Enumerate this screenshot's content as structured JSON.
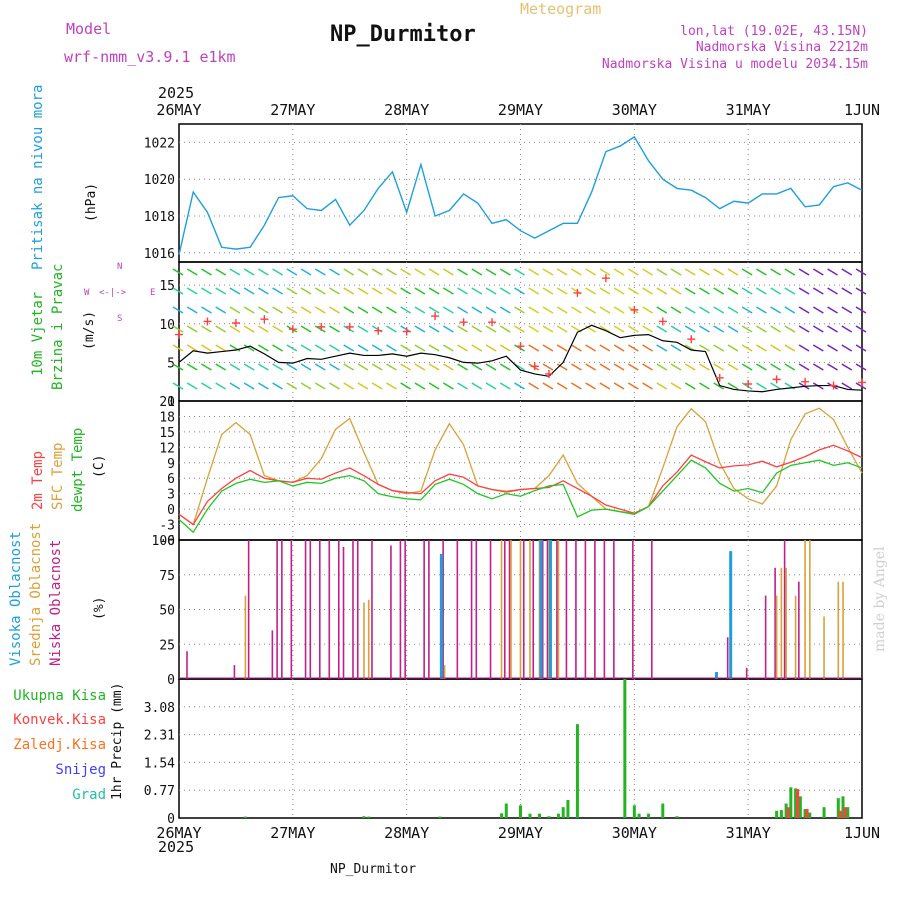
{
  "header": {
    "model_label": "Model",
    "model_name": "wrf-nmm_v3.9.1 e1km",
    "title": "NP_Durmitor",
    "subtitle": "Meteogram",
    "coords": "lon,lat (19.02E, 43.15N)",
    "elevation": "Nadmorska Visina 2212m",
    "elevation_model": "Nadmorska Visina u modelu 2034.15m",
    "year_top": "2025",
    "year_bottom": "2025",
    "footer": "NP_Durmitor",
    "credit": "made by Angel"
  },
  "colors": {
    "pressure": "#1e9fdc",
    "wind_label": "#22b522",
    "wind_speed": "#000000",
    "gust": "#ff4040",
    "temp2m": "#ff4040",
    "sfc_temp": "#dca03a",
    "dewpt": "#22c522",
    "high_cloud": "#1e9fdc",
    "mid_cloud": "#dca03a",
    "low_cloud": "#c0208a",
    "precip_total": "#22b522",
    "precip_conv": "#ff4040",
    "precip_frozen": "#ff7020",
    "precip_snow": "#4040ff",
    "precip_hail": "#20c0a0",
    "direction_legend": "#c040c0",
    "credit": "#c8c8c8"
  },
  "x_axis": {
    "ticks": [
      "26MAY",
      "27MAY",
      "28MAY",
      "29MAY",
      "30MAY",
      "31MAY",
      "1JUN"
    ]
  },
  "panels": {
    "pressure": {
      "label": "Pritisak na nivou mora",
      "unit": "(hPa)"
    },
    "wind": {
      "label1": "10m Vjetar",
      "label2": "Brzina i Pravac",
      "unit": "(m/s)",
      "compass_n": "N",
      "compass_e": "E",
      "compass_s": "S",
      "compass_w": "W",
      "compass_arrows": "<-|->"
    },
    "temp": {
      "label1": "2m Temp",
      "label2": "SFC Temp",
      "label3": "dewpt Temp",
      "unit": "(C)"
    },
    "cloud": {
      "label1": "Visoka Oblacnost",
      "label2": "Srednja Oblacnost",
      "label3": "Niska Oblacnost",
      "unit": "(%)"
    },
    "precip": {
      "legend": [
        "Ukupna Kisa",
        "Konvek.Kisa",
        "Zaledj.Kisa",
        "Snijeg",
        "Grad"
      ],
      "unit": "1hr Precip (mm)"
    }
  },
  "chart_data": [
    {
      "type": "line",
      "name": "pressure",
      "x_unit": "hours since 26MAY 00",
      "ylim": [
        1015.5,
        1023
      ],
      "y_ticks": [
        1016,
        1018,
        1020,
        1022
      ],
      "grid": true,
      "series": [
        {
          "x": [
            0,
            3,
            6,
            9,
            12,
            15,
            18,
            21,
            24,
            27,
            30,
            33,
            36,
            39,
            42,
            45,
            48,
            51,
            54,
            57,
            60,
            63,
            66,
            69,
            72,
            75,
            78,
            81,
            84,
            87,
            90,
            93,
            96,
            99,
            102,
            105,
            108,
            111,
            114,
            117,
            120,
            123,
            126,
            129,
            132,
            135,
            138,
            141,
            144,
            147,
            150,
            153,
            156,
            159,
            162,
            165,
            168
          ],
          "y": [
            1015.9,
            1019.3,
            1018.2,
            1016.3,
            1016.2,
            1016.3,
            1017.5,
            1019.0,
            1019.1,
            1018.4,
            1018.3,
            1018.9,
            1017.5,
            1018.3,
            1019.5,
            1020.4,
            1018.2,
            1020.8,
            1018.0,
            1018.3,
            1019.2,
            1018.7,
            1017.6,
            1017.8,
            1017.2,
            1016.8,
            1017.2,
            1017.6,
            1017.6,
            1019.3,
            1021.5,
            1021.8,
            1022.3,
            1021.0,
            1020.0,
            1019.5,
            1019.4,
            1019.0,
            1018.4,
            1018.8,
            1018.7,
            1019.2,
            1019.2,
            1019.5,
            1018.5,
            1018.6,
            1019.6,
            1019.8,
            1019.4,
            1019.0,
            1019.1,
            1018.9,
            1018.7,
            1019.5,
            1019.9,
            1019.6,
            1019.2
          ]
        }
      ]
    },
    {
      "type": "line",
      "name": "wind",
      "ylim": [
        0,
        18
      ],
      "y_ticks": [
        0,
        5,
        10,
        15
      ],
      "grid": true,
      "series": [
        {
          "name": "speed",
          "x": [
            0,
            3,
            6,
            9,
            12,
            15,
            18,
            21,
            24,
            27,
            30,
            33,
            36,
            39,
            42,
            45,
            48,
            51,
            54,
            57,
            60,
            63,
            66,
            69,
            72,
            75,
            78,
            81,
            84,
            87,
            90,
            93,
            96,
            99,
            102,
            105,
            108,
            111,
            114,
            117,
            120,
            123,
            126,
            129,
            132,
            135,
            138,
            141,
            144,
            147,
            150,
            153,
            156,
            159,
            162,
            165,
            168
          ],
          "y": [
            5,
            6.5,
            6.2,
            6.4,
            6.6,
            7.1,
            6.1,
            5.0,
            4.9,
            5.5,
            5.4,
            5.8,
            6.2,
            5.9,
            5.9,
            6.1,
            5.8,
            6.2,
            6.0,
            5.6,
            5.0,
            4.9,
            5.2,
            5.8,
            4.0,
            3.5,
            3.2,
            5.0,
            8.9,
            9.8,
            9.1,
            8.2,
            8.5,
            8.6,
            7.8,
            7.6,
            6.6,
            6.4,
            2.0,
            1.5,
            1.3,
            1.2,
            1.5,
            1.7,
            1.9,
            2.0,
            2.0,
            1.5,
            1.4,
            1.7,
            1.8,
            2.0,
            2.1,
            2.0,
            2.4,
            1.5,
            1.0
          ]
        },
        {
          "name": "gust",
          "x": [
            0,
            6,
            12,
            18,
            24,
            30,
            36,
            42,
            48,
            54,
            60,
            66,
            72,
            75,
            78,
            84,
            90,
            96,
            102,
            108,
            114,
            120,
            126,
            132,
            138,
            144,
            150,
            156,
            162,
            168
          ],
          "y": [
            8.6,
            10.3,
            10.1,
            10.6,
            9.3,
            9.6,
            9.6,
            9.1,
            9.0,
            11.0,
            10.2,
            10.2,
            7.1,
            4.5,
            3.5,
            14.0,
            15.9,
            11.8,
            10.3,
            8.0,
            3.0,
            2.2,
            2.8,
            2.5,
            2.0,
            2.4,
            2.1,
            1.8,
            1.6,
            1.5
          ]
        }
      ]
    },
    {
      "type": "line",
      "name": "temperature",
      "ylim": [
        -6,
        21
      ],
      "y_ticks": [
        -6,
        -3,
        0,
        3,
        6,
        9,
        12,
        15,
        18,
        21
      ],
      "grid": true,
      "series": [
        {
          "name": "2m",
          "x": [
            0,
            3,
            6,
            9,
            12,
            15,
            18,
            21,
            24,
            27,
            30,
            33,
            36,
            39,
            42,
            45,
            48,
            51,
            54,
            57,
            60,
            63,
            66,
            69,
            72,
            75,
            78,
            81,
            84,
            87,
            90,
            93,
            96,
            99,
            102,
            105,
            108,
            111,
            114,
            117,
            120,
            123,
            126,
            129,
            132,
            135,
            138,
            141,
            144,
            147,
            150,
            153,
            156,
            159,
            162,
            165,
            168
          ],
          "y": [
            -1,
            -3,
            1.5,
            4,
            6,
            7.5,
            6,
            5.5,
            5.2,
            6,
            5.8,
            7,
            8,
            6.5,
            4.8,
            3.6,
            3.2,
            3.0,
            5.5,
            6.8,
            6.2,
            4.5,
            3.8,
            3.3,
            3.8,
            4.0,
            4.2,
            5.5,
            4.0,
            2.5,
            0.8,
            0.0,
            -0.8,
            0.5,
            4.5,
            7.2,
            10.5,
            9.2,
            8.0,
            8.4,
            8.6,
            9.3,
            8.2,
            9.1,
            10.2,
            11.5,
            12.4,
            11.3,
            10.0,
            9.0,
            8.0,
            7.8,
            7.6,
            7.5,
            7.7,
            7.8,
            7.5
          ]
        },
        {
          "name": "sfc",
          "x": [
            0,
            3,
            6,
            9,
            12,
            15,
            18,
            21,
            24,
            27,
            30,
            33,
            36,
            39,
            42,
            45,
            48,
            51,
            54,
            57,
            60,
            63,
            66,
            69,
            72,
            75,
            78,
            81,
            84,
            87,
            90,
            93,
            96,
            99,
            102,
            105,
            108,
            111,
            114,
            117,
            120,
            123,
            126,
            129,
            132,
            135,
            138,
            141,
            144,
            147,
            150,
            153,
            156,
            159,
            162,
            165,
            168
          ],
          "y": [
            -1,
            -3,
            6,
            14.5,
            16.8,
            14.5,
            6.5,
            5.5,
            5.2,
            6.5,
            9.8,
            15.5,
            17.6,
            11,
            4.8,
            3.6,
            3.0,
            3.5,
            11.5,
            16.6,
            12.5,
            4.5,
            3.8,
            3.5,
            3.8,
            4.0,
            6.5,
            10.5,
            5.0,
            2.5,
            0.0,
            -0.5,
            -0.8,
            0.5,
            8.0,
            16.0,
            19.5,
            17.0,
            9.0,
            4.0,
            2.0,
            1.0,
            4.5,
            13.5,
            18.5,
            19.6,
            17.4,
            12.0,
            7.0,
            4.5,
            3.5,
            2.8,
            2.0,
            1.2,
            0.8,
            0.6,
            0.5
          ]
        },
        {
          "name": "dewpt",
          "x": [
            0,
            3,
            6,
            9,
            12,
            15,
            18,
            21,
            24,
            27,
            30,
            33,
            36,
            39,
            42,
            45,
            48,
            51,
            54,
            57,
            60,
            63,
            66,
            69,
            72,
            75,
            78,
            81,
            84,
            87,
            90,
            93,
            96,
            99,
            102,
            105,
            108,
            111,
            114,
            117,
            120,
            123,
            126,
            129,
            132,
            135,
            138,
            141,
            144,
            147,
            150,
            153,
            156,
            159,
            162,
            165,
            168
          ],
          "y": [
            -2,
            -4.5,
            0,
            3.5,
            5.0,
            5.8,
            5.2,
            5.5,
            4.5,
            5.2,
            5.0,
            6.0,
            6.5,
            5.5,
            3.0,
            2.4,
            2.0,
            1.8,
            4.8,
            5.8,
            4.8,
            3.0,
            2.0,
            3.0,
            2.5,
            3.6,
            4.5,
            4.8,
            -1.5,
            -0.2,
            0.0,
            -0.5,
            -1.0,
            0.5,
            3.5,
            6.5,
            9.5,
            8.0,
            5.0,
            3.5,
            4.0,
            3.2,
            7.0,
            8.5,
            9.0,
            9.5,
            8.5,
            9.0,
            8.0,
            7.5,
            8.2,
            8.0,
            7.6,
            8.0,
            7.4,
            6.0,
            3.5
          ]
        }
      ]
    },
    {
      "type": "bar",
      "name": "cloud",
      "ylim": [
        0,
        100
      ],
      "y_ticks": [
        0,
        25,
        50,
        75,
        100
      ],
      "grid": true,
      "series": [
        {
          "name": "low",
          "x": [
            2,
            12,
            15,
            20,
            21,
            22,
            24,
            27,
            28,
            30,
            32,
            34,
            35,
            37,
            38,
            41,
            45,
            47,
            48,
            52,
            53,
            56,
            59,
            62,
            63,
            66,
            69,
            70,
            73,
            75,
            77,
            78,
            80,
            82,
            84,
            86,
            88,
            90,
            92,
            96,
            100,
            116,
            120,
            124,
            126,
            128,
            131
          ],
          "y": [
            20,
            10,
            100,
            35,
            100,
            100,
            100,
            100,
            100,
            100,
            100,
            100,
            95,
            100,
            100,
            100,
            96,
            100,
            100,
            100,
            100,
            100,
            100,
            100,
            100,
            100,
            100,
            100,
            100,
            100,
            100,
            100,
            100,
            100,
            100,
            100,
            100,
            100,
            100,
            100,
            100,
            30,
            8,
            60,
            80,
            100,
            70
          ]
        },
        {
          "name": "mid",
          "x": [
            14,
            39,
            40,
            56,
            68,
            70,
            72,
            74,
            76,
            78,
            80,
            126,
            127,
            128,
            130,
            132,
            133,
            136,
            139,
            140
          ],
          "y": [
            60,
            55,
            57,
            10,
            100,
            100,
            100,
            100,
            100,
            100,
            100,
            60,
            80,
            80,
            60,
            100,
            100,
            45,
            70,
            70
          ]
        },
        {
          "name": "high",
          "x": [
            55,
            76,
            78,
            113,
            116
          ],
          "y": [
            90,
            100,
            100,
            5,
            92
          ]
        }
      ]
    },
    {
      "type": "bar",
      "name": "precipitation",
      "ylim": [
        0,
        3.85
      ],
      "y_ticks": [
        0,
        0.77,
        1.54,
        2.31,
        3.08
      ],
      "grid": true,
      "series": [
        {
          "name": "total",
          "x": [
            14,
            39,
            40,
            55,
            68,
            69,
            72,
            74,
            76,
            78,
            80,
            81,
            82,
            84,
            94,
            96,
            97,
            99,
            102,
            105,
            126,
            127,
            128,
            129,
            130,
            131,
            132,
            133,
            136,
            139,
            140,
            141
          ],
          "y": [
            0.04,
            0.05,
            0.04,
            0.04,
            0.13,
            0.4,
            0.35,
            0.12,
            0.12,
            0.05,
            0.12,
            0.3,
            0.5,
            2.6,
            3.9,
            0.35,
            0.12,
            0.12,
            0.4,
            0.05,
            0.2,
            0.22,
            0.4,
            0.85,
            0.82,
            0.6,
            0.25,
            0.15,
            0.3,
            0.55,
            0.6,
            0.3
          ]
        },
        {
          "name": "convective",
          "x": [
            128,
            130,
            132,
            139,
            140
          ],
          "y": [
            0.3,
            0.8,
            0.25,
            0.2,
            0.3
          ]
        }
      ]
    }
  ]
}
